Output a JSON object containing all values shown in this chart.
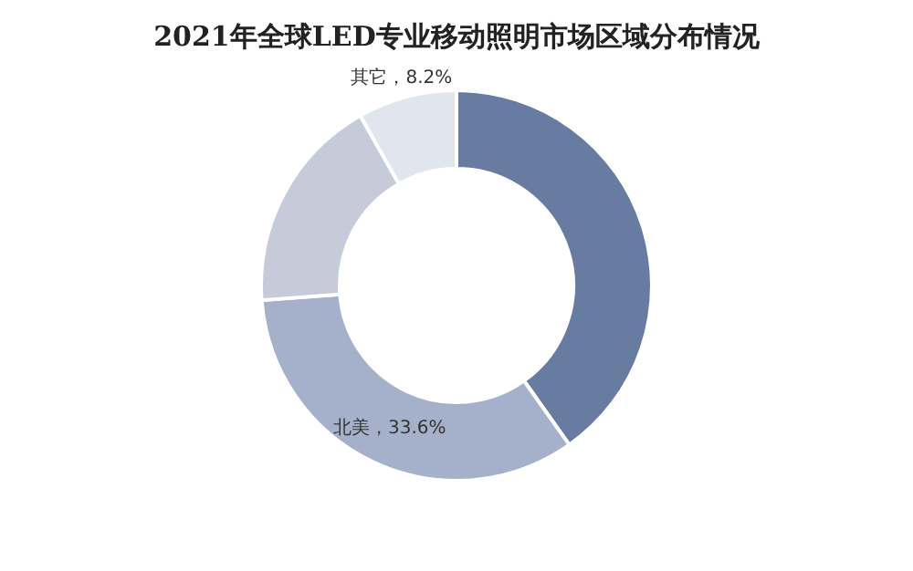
{
  "chart_data": {
    "type": "donut",
    "title": "2021年全球LED专业移动照明市场区域分布情况",
    "categories": [
      null,
      "北美",
      null,
      "其它"
    ],
    "values": [
      40.2,
      33.6,
      18.0,
      8.2
    ],
    "colors": [
      "#687ba0",
      "#a5b1ca",
      "#c5cbd9",
      "#e1e5ee"
    ],
    "value_labels": [
      null,
      "33.6%",
      null,
      "8.2%"
    ]
  }
}
